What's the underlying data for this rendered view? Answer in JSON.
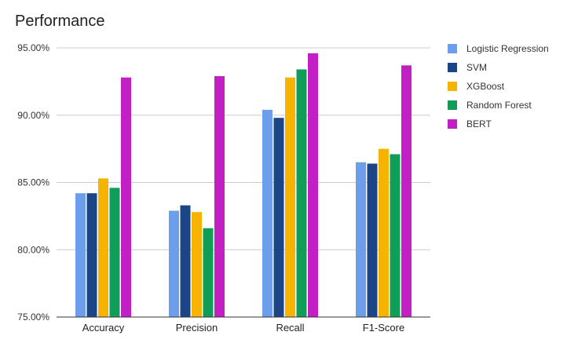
{
  "chart_data": {
    "type": "bar",
    "title": "Performance",
    "xlabel": "",
    "ylabel": "",
    "ylim": [
      75,
      95
    ],
    "yticks": [
      "75.00%",
      "80.00%",
      "85.00%",
      "90.00%",
      "95.00%"
    ],
    "ytick_values": [
      75,
      80,
      85,
      90,
      95
    ],
    "grid": true,
    "legend_position": "right",
    "categories": [
      "Accuracy",
      "Precision",
      "Recall",
      "F1-Score"
    ],
    "series": [
      {
        "name": "Logistic Regression",
        "color": "#6d9eeb",
        "values": [
          84.2,
          82.9,
          90.4,
          86.5
        ]
      },
      {
        "name": "SVM",
        "color": "#1c4587",
        "values": [
          84.2,
          83.3,
          89.8,
          86.4
        ]
      },
      {
        "name": "XGBoost",
        "color": "#f6b400",
        "values": [
          85.3,
          82.8,
          92.8,
          87.5
        ]
      },
      {
        "name": "Random Forest",
        "color": "#0f9d58",
        "values": [
          84.6,
          81.6,
          93.4,
          87.1
        ]
      },
      {
        "name": "BERT",
        "color": "#c21fc4",
        "values": [
          92.8,
          92.9,
          94.6,
          93.7
        ]
      }
    ]
  }
}
